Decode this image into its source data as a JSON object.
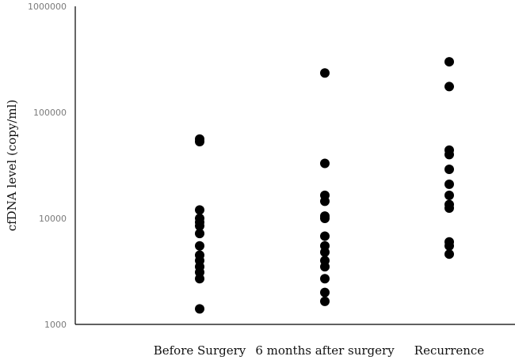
{
  "chart_data": {
    "type": "scatter",
    "title": "",
    "xlabel": "",
    "ylabel": "cfDNA level (copy/ml)",
    "yscale": "log",
    "ylim": [
      1000,
      1000000
    ],
    "yticks": [
      "1000",
      "10000",
      "100000",
      "1000000"
    ],
    "yticks_values": [
      1000,
      10000,
      100000,
      1000000
    ],
    "grid": false,
    "categories": [
      "Before Surgery",
      "6 months after surgery",
      "Recurrence"
    ],
    "series": [
      {
        "values": [
          [
            56000,
            53000,
            12000,
            10000,
            9200,
            8500,
            7200,
            5500,
            4500,
            4000,
            3500,
            3100,
            2700,
            1400
          ],
          [
            235000,
            33000,
            16500,
            14500,
            10500,
            10000,
            6800,
            5500,
            4800,
            4000,
            3500,
            2700,
            2000,
            1650
          ],
          [
            300000,
            175000,
            44000,
            40000,
            29000,
            21000,
            16500,
            13500,
            12500,
            6000,
            5500,
            4600
          ]
        ]
      }
    ],
    "marker_color": "#000000"
  }
}
